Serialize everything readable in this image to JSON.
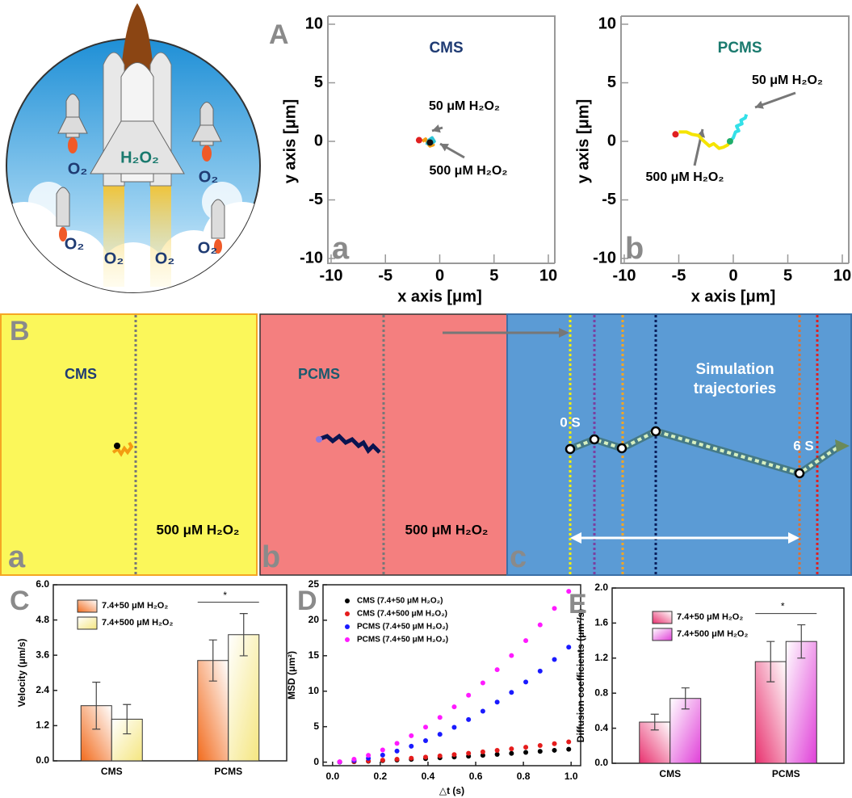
{
  "illustration": {
    "fuel": "H₂O₂",
    "oxygen_labels": [
      "O₂",
      "O₂",
      "O₂",
      "O₂",
      "O₂",
      "O₂"
    ]
  },
  "panel_B": {
    "label": "B",
    "panels": [
      {
        "sublabel": "a",
        "title": "CMS",
        "concentration": "500 μM H₂O₂"
      },
      {
        "sublabel": "b",
        "title": "PCMS",
        "concentration": "500 μM H₂O₂"
      },
      {
        "sublabel": "c",
        "title_lines": [
          "Simulation",
          "trajectories"
        ],
        "start": "0 S",
        "end": "6 S"
      }
    ]
  },
  "chart_data": [
    {
      "type": "line",
      "label": "A",
      "sublabel": "a",
      "title": "CMS",
      "title_color": "#1f3b73",
      "xlabel": "x axis [μm]",
      "ylabel": "y axis [μm]",
      "xlim": [
        -10,
        10
      ],
      "ylim": [
        -10,
        10
      ],
      "xticks": [
        -10,
        -5,
        0,
        5,
        10
      ],
      "yticks": [
        -10,
        -5,
        0,
        5,
        10
      ],
      "annotations": [
        "50 μM H₂O₂",
        "500 μM H₂O₂"
      ],
      "series": [
        {
          "color": "#f39c12",
          "x": [
            -1.6,
            -1.3,
            -1.1,
            -0.8,
            -0.6,
            -0.9,
            -1.2
          ],
          "values": [
            0,
            0.2,
            -0.2,
            0.1,
            -0.3,
            -0.4,
            -0.1
          ]
        },
        {
          "color": "#2ec4d6",
          "x": [
            -1.2,
            -1.0,
            -0.7,
            -0.5,
            -0.8
          ],
          "values": [
            -0.3,
            0.1,
            0.3,
            0.0,
            -0.2
          ]
        },
        {
          "color": "#e02020",
          "x": [
            -1.9
          ],
          "values": [
            0.1
          ]
        },
        {
          "color": "#111111",
          "x": [
            -0.9
          ],
          "values": [
            -0.1
          ]
        }
      ]
    },
    {
      "type": "line",
      "sublabel": "b",
      "title": "PCMS",
      "title_color": "#1a7a6e",
      "xlabel": "x axis [μm]",
      "ylabel": "y axis [μm]",
      "xlim": [
        -10,
        10
      ],
      "ylim": [
        -10,
        10
      ],
      "xticks": [
        -10,
        -5,
        0,
        5,
        10
      ],
      "yticks": [
        -10,
        -5,
        0,
        5,
        10
      ],
      "annotations": [
        "50 μM H₂O₂",
        "500 μM H₂O₂"
      ],
      "series": [
        {
          "color": "#f5e400",
          "x": [
            -5,
            -4.3,
            -3.8,
            -3.2,
            -2.8,
            -2.2,
            -1.8,
            -1.3,
            -0.9,
            -0.5,
            -0.3
          ],
          "values": [
            0.8,
            0.8,
            0.6,
            0.5,
            0.1,
            -0.4,
            -0.2,
            -0.6,
            -0.5,
            -0.3,
            0
          ]
        },
        {
          "color": "#33e0e8",
          "x": [
            -0.3,
            0,
            0.2,
            0.5,
            0.3,
            0.8,
            0.7,
            1.1,
            1.2
          ],
          "values": [
            0,
            0.3,
            0.8,
            0.9,
            1.3,
            1.5,
            1.8,
            2.0,
            2.3
          ]
        },
        {
          "color": "#e02020",
          "x": [
            -5.3
          ],
          "values": [
            0.6
          ]
        },
        {
          "color": "#1fae6a",
          "x": [
            -0.3
          ],
          "values": [
            0
          ]
        }
      ]
    },
    {
      "type": "bar",
      "label": "C",
      "ylabel": "Velocity (μm/s)",
      "categories": [
        "CMS",
        "PCMS"
      ],
      "ylim": [
        0,
        6
      ],
      "yticks": [
        {
          "value": 0,
          "label": "0.0"
        },
        1.2,
        2.4,
        3.6,
        4.8,
        {
          "value": 6,
          "label": "6.0"
        }
      ],
      "significance": "*",
      "series": [
        {
          "name": "7.4+50 μM H₂O₂",
          "color": "#f26b1d",
          "values": [
            1.88,
            3.42
          ],
          "error": [
            0.8,
            0.7
          ]
        },
        {
          "name": "7.4+500 μM H₂O₂",
          "color": "#f5e680",
          "values": [
            1.42,
            4.3
          ],
          "error": [
            0.5,
            0.72
          ]
        }
      ]
    },
    {
      "type": "scatter",
      "label": "D",
      "xlabel": "△t (s)",
      "ylabel": "MSD (μm²)",
      "xlim": [
        -0.04,
        1.04
      ],
      "ylim": [
        -0.5,
        25
      ],
      "xticks": [
        {
          "value": 0,
          "label": "0.0"
        },
        0.2,
        0.4,
        0.6,
        0.8,
        {
          "value": 1,
          "label": "1.0"
        }
      ],
      "yticks": [
        0,
        5,
        10,
        15,
        20,
        25
      ],
      "x": [
        0.03,
        0.09,
        0.15,
        0.21,
        0.27,
        0.33,
        0.39,
        0.45,
        0.51,
        0.57,
        0.63,
        0.69,
        0.75,
        0.81,
        0.87,
        0.93,
        0.99
      ],
      "series": [
        {
          "name": "CMS (7.4+50 μM H₂O₂)",
          "color": "#000000",
          "values": [
            0.01,
            0.06,
            0.13,
            0.21,
            0.3,
            0.39,
            0.5,
            0.61,
            0.72,
            0.84,
            0.97,
            1.1,
            1.24,
            1.38,
            1.52,
            1.67,
            1.82
          ]
        },
        {
          "name": "CMS (7.4+500 μM H₂O₂)",
          "color": "#e51c1c",
          "values": [
            0.02,
            0.08,
            0.17,
            0.28,
            0.41,
            0.55,
            0.71,
            0.88,
            1.06,
            1.25,
            1.45,
            1.66,
            1.88,
            2.11,
            2.35,
            2.6,
            2.86
          ]
        },
        {
          "name": "PCMS (7.4+50 μM H₂O₂)",
          "color": "#1a1aff",
          "values": [
            0.03,
            0.22,
            0.54,
            0.99,
            1.56,
            2.24,
            3.03,
            3.92,
            4.91,
            6.0,
            7.18,
            8.46,
            9.83,
            11.3,
            12.84,
            14.47,
            16.2
          ]
        },
        {
          "name": "PCMS (7.4+50 μM H₂O₂)",
          "color": "#ff1aff",
          "values": [
            0.06,
            0.41,
            0.97,
            1.72,
            2.65,
            3.72,
            4.94,
            6.3,
            7.8,
            9.43,
            11.17,
            13.03,
            15.02,
            17.13,
            19.35,
            21.67,
            24.08
          ]
        }
      ]
    },
    {
      "type": "bar",
      "label": "E",
      "ylabel": "Diffusion coefficients (μm²/s)",
      "categories": [
        "CMS",
        "PCMS"
      ],
      "ylim": [
        0,
        2
      ],
      "yticks": [
        {
          "value": 0,
          "label": "0.0"
        },
        0.4,
        0.8,
        1.2,
        1.6,
        {
          "value": 2,
          "label": "2.0"
        }
      ],
      "significance": "*",
      "series": [
        {
          "name": "7.4+50 μM H₂O₂",
          "color": "#e8306e",
          "values": [
            0.47,
            1.16
          ],
          "error": [
            0.09,
            0.23
          ]
        },
        {
          "name": "7.4+500 μM H₂O₂",
          "color": "#e040d8",
          "values": [
            0.74,
            1.39
          ],
          "error": [
            0.12,
            0.19
          ]
        }
      ]
    }
  ]
}
